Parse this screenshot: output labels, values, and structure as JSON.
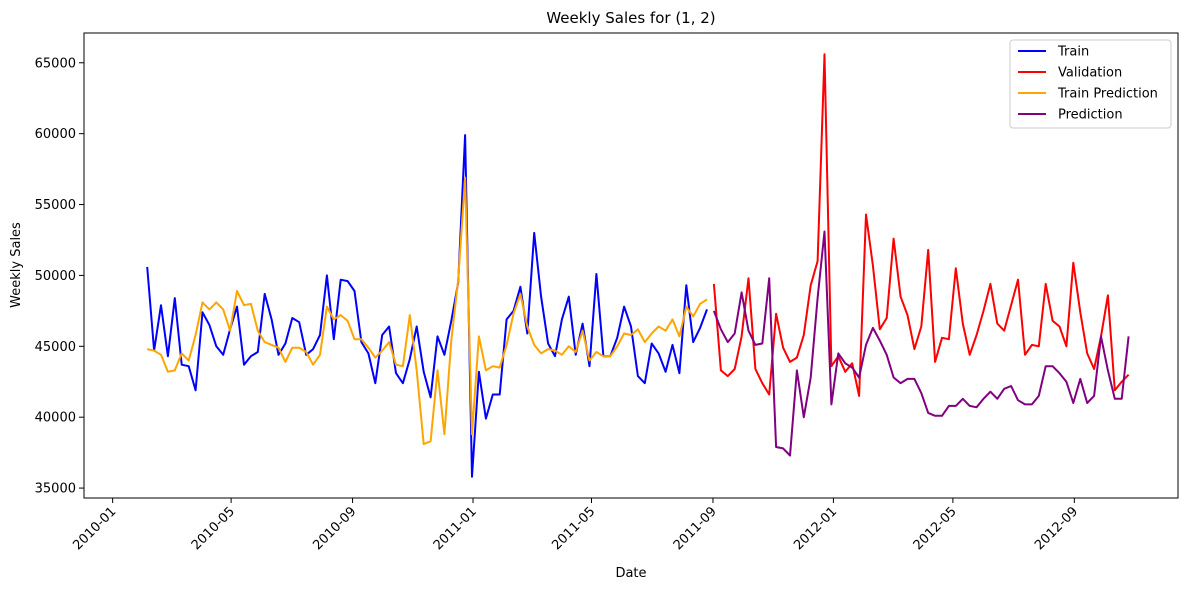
{
  "chart_data": {
    "type": "line",
    "title": "Weekly Sales for (1, 2)",
    "xlabel": "Date",
    "ylabel": "Weekly Sales",
    "x_ticks": [
      "2010-01",
      "2010-05",
      "2010-09",
      "2011-01",
      "2011-05",
      "2011-09",
      "2012-01",
      "2012-05",
      "2012-09"
    ],
    "y_ticks": [
      35000,
      40000,
      45000,
      50000,
      55000,
      60000,
      65000
    ],
    "xlim": [
      "2009-12-03",
      "2012-12-15"
    ],
    "ylim": [
      34300,
      67100
    ],
    "grid": false,
    "legend_position": "top-right",
    "series": [
      {
        "name": "Train",
        "color": "#0000ff",
        "start": "2010-02-05",
        "values": [
          50600,
          44700,
          47900,
          44300,
          48400,
          43700,
          43600,
          41900,
          47400,
          46500,
          45000,
          44400,
          46200,
          47800,
          43700,
          44300,
          44600,
          48700,
          46900,
          44400,
          45200,
          47000,
          46700,
          44400,
          44800,
          45800,
          50000,
          45500,
          49700,
          49600,
          48900,
          45300,
          44500,
          42400,
          45800,
          46400,
          43100,
          42400,
          44100,
          46400,
          43200,
          41400,
          45700,
          44400,
          46800,
          49500,
          59900,
          35800,
          43200,
          39900,
          41600,
          41600,
          46900,
          47500,
          49200,
          45900,
          53000,
          48500,
          45200,
          44300,
          46900,
          48500,
          44400,
          46600,
          43600,
          50100,
          44300,
          44300,
          45600,
          47800,
          46400,
          42900,
          42400,
          45200,
          44500,
          43200,
          45100,
          43100,
          49300,
          45300,
          46300,
          47600
        ]
      },
      {
        "name": "Validation",
        "color": "#ff0000",
        "start": "2011-09-02",
        "values": [
          49400,
          43300,
          42900,
          43400,
          45700,
          49800,
          43400,
          42400,
          41600,
          47300,
          44900,
          43900,
          44200,
          45800,
          49300,
          51000,
          65600,
          43600,
          44300,
          43200,
          43800,
          41500,
          54300,
          50700,
          46200,
          47000,
          52600,
          48500,
          47200,
          44800,
          46400,
          51800,
          43900,
          45600,
          45500,
          50500,
          46600,
          44400,
          45800,
          47500,
          49400,
          46600,
          46100,
          47900,
          49700,
          44400,
          45100,
          45000,
          49400,
          46800,
          46400,
          45000,
          50900,
          47400,
          44500,
          43400,
          45700,
          48600,
          41900,
          42500,
          43000
        ]
      },
      {
        "name": "Train Prediction",
        "color": "#ffa500",
        "start": "2010-02-05",
        "values": [
          44800,
          44700,
          44400,
          43200,
          43300,
          44500,
          44000,
          45800,
          48100,
          47600,
          48100,
          47600,
          46100,
          48900,
          47900,
          48000,
          46100,
          45300,
          45100,
          44900,
          43900,
          44900,
          44900,
          44600,
          43700,
          44400,
          47800,
          46900,
          47200,
          46800,
          45500,
          45500,
          44900,
          44200,
          44700,
          45300,
          43700,
          43600,
          47200,
          43300,
          38100,
          38300,
          43300,
          38800,
          45400,
          49700,
          56900,
          38800,
          45700,
          43300,
          43600,
          43500,
          45100,
          47300,
          48700,
          46400,
          45100,
          44500,
          44800,
          44700,
          44400,
          45000,
          44600,
          46100,
          44000,
          44600,
          44300,
          44300,
          45000,
          45900,
          45800,
          46200,
          45300,
          45900,
          46400,
          46100,
          46900,
          45700,
          47800,
          47100,
          48000,
          48300
        ]
      },
      {
        "name": "Prediction",
        "color": "#800080",
        "start": "2011-09-02",
        "values": [
          47500,
          46200,
          45300,
          45900,
          48800,
          46100,
          45100,
          45200,
          49800,
          37900,
          37800,
          37300,
          43300,
          40000,
          42800,
          48400,
          53100,
          40900,
          44500,
          43800,
          43500,
          42800,
          45100,
          46300,
          45400,
          44400,
          42800,
          42400,
          42700,
          42700,
          41700,
          40300,
          40100,
          40100,
          40800,
          40800,
          41300,
          40800,
          40700,
          41300,
          41800,
          41300,
          42000,
          42200,
          41200,
          40900,
          40900,
          41500,
          43600,
          43600,
          43100,
          42500,
          41000,
          42700,
          41000,
          41500,
          45700,
          43300,
          41300,
          41300,
          45700
        ]
      }
    ]
  }
}
